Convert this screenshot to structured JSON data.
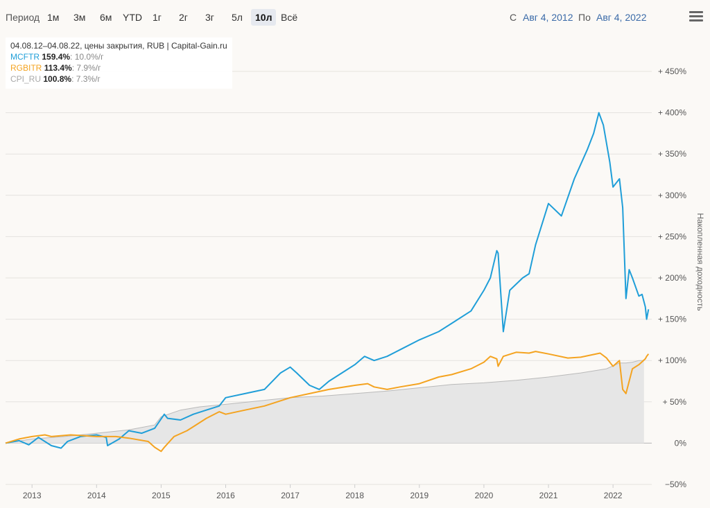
{
  "toolbar": {
    "period_label": "Период",
    "ranges": [
      "1м",
      "3м",
      "6м",
      "YTD",
      "1г",
      "2г",
      "3г",
      "5л",
      "10л",
      "Всё"
    ],
    "active_range": "10л",
    "from_label": "С",
    "from_date": "Авг 4, 2012",
    "to_label": "По",
    "to_date": "Авг 4, 2022"
  },
  "legend": {
    "caption": "04.08.12–04.08.22, цены закрытия, RUB | Capital-Gain.ru",
    "items": [
      {
        "name": "MCFTR",
        "total": "159.4%",
        "annual": ": 10.0%/г",
        "color": "#1f9ed8"
      },
      {
        "name": "RGBITR",
        "total": "113.4%",
        "annual": ": 7.9%/г",
        "color": "#f4a320"
      },
      {
        "name": "CPI_RU",
        "total": "100.8%",
        "annual": ": 7.3%/г",
        "color": "#b9b9b9"
      }
    ]
  },
  "chart_data": {
    "type": "line",
    "ylabel": "Накопленная доходность",
    "xlabel": "",
    "ylim": [
      -50,
      450
    ],
    "xlim": [
      2012.59,
      2022.6
    ],
    "y_ticks": [
      -50,
      0,
      50,
      100,
      150,
      200,
      250,
      300,
      350,
      400,
      450
    ],
    "y_tick_labels": [
      "−50%",
      "0%",
      "+ 50%",
      "+ 100%",
      "+ 150%",
      "+ 200%",
      "+ 250%",
      "+ 300%",
      "+ 350%",
      "+ 400%",
      "+ 450%"
    ],
    "x_ticks": [
      2013,
      2014,
      2015,
      2016,
      2017,
      2018,
      2019,
      2020,
      2021,
      2022
    ],
    "grid": true,
    "legend_position": "top-left",
    "series": [
      {
        "name": "MCFTR",
        "color": "#1f9ed8",
        "style": "line",
        "x": [
          2012.59,
          2012.8,
          2012.95,
          2013.1,
          2013.3,
          2013.45,
          2013.55,
          2013.75,
          2014.0,
          2014.15,
          2014.17,
          2014.35,
          2014.5,
          2014.7,
          2014.9,
          2015.05,
          2015.1,
          2015.3,
          2015.5,
          2015.7,
          2015.9,
          2016.0,
          2016.3,
          2016.6,
          2016.85,
          2017.0,
          2017.1,
          2017.3,
          2017.45,
          2017.6,
          2017.8,
          2018.0,
          2018.15,
          2018.3,
          2018.5,
          2018.75,
          2019.0,
          2019.3,
          2019.5,
          2019.8,
          2020.0,
          2020.1,
          2020.2,
          2020.22,
          2020.3,
          2020.4,
          2020.6,
          2020.7,
          2020.8,
          2021.0,
          2021.2,
          2021.4,
          2021.6,
          2021.7,
          2021.78,
          2021.85,
          2021.95,
          2022.0,
          2022.1,
          2022.15,
          2022.2,
          2022.25,
          2022.3,
          2022.4,
          2022.45,
          2022.5,
          2022.52,
          2022.55
        ],
        "y": [
          0,
          3,
          -2,
          7,
          -3,
          -6,
          2,
          8,
          10,
          7,
          -3,
          5,
          15,
          12,
          18,
          35,
          30,
          28,
          35,
          40,
          45,
          55,
          60,
          65,
          85,
          92,
          85,
          70,
          65,
          75,
          85,
          95,
          105,
          100,
          105,
          115,
          125,
          135,
          145,
          160,
          185,
          200,
          233,
          230,
          135,
          185,
          200,
          205,
          240,
          290,
          275,
          320,
          355,
          375,
          400,
          385,
          340,
          310,
          320,
          285,
          175,
          210,
          200,
          178,
          180,
          165,
          150,
          162
        ]
      },
      {
        "name": "RGBITR",
        "color": "#f4a320",
        "style": "line",
        "x": [
          2012.59,
          2012.8,
          2013.0,
          2013.2,
          2013.3,
          2013.6,
          2014.0,
          2014.3,
          2014.5,
          2014.8,
          2014.9,
          2015.0,
          2015.05,
          2015.2,
          2015.4,
          2015.5,
          2015.7,
          2015.9,
          2016.0,
          2016.3,
          2016.6,
          2017.0,
          2017.3,
          2017.6,
          2018.0,
          2018.2,
          2018.3,
          2018.5,
          2018.7,
          2019.0,
          2019.3,
          2019.5,
          2019.8,
          2020.0,
          2020.1,
          2020.2,
          2020.22,
          2020.3,
          2020.5,
          2020.7,
          2020.8,
          2021.0,
          2021.3,
          2021.5,
          2021.8,
          2021.9,
          2022.0,
          2022.1,
          2022.15,
          2022.2,
          2022.3,
          2022.4,
          2022.5,
          2022.52,
          2022.55
        ],
        "y": [
          0,
          5,
          8,
          10,
          8,
          10,
          8,
          8,
          6,
          2,
          -5,
          -10,
          -5,
          8,
          15,
          20,
          30,
          38,
          35,
          40,
          45,
          55,
          60,
          65,
          70,
          72,
          68,
          65,
          68,
          72,
          80,
          83,
          90,
          98,
          105,
          102,
          93,
          105,
          110,
          109,
          111,
          108,
          103,
          104,
          109,
          103,
          93,
          100,
          65,
          60,
          90,
          95,
          102,
          105,
          108
        ]
      },
      {
        "name": "CPI_RU",
        "color": "#b9b9b9",
        "style": "area",
        "x": [
          2012.59,
          2013.0,
          2013.5,
          2014.0,
          2014.5,
          2014.9,
          2015.0,
          2015.3,
          2015.6,
          2016.0,
          2016.5,
          2017.0,
          2017.5,
          2018.0,
          2018.5,
          2019.0,
          2019.5,
          2020.0,
          2020.5,
          2021.0,
          2021.5,
          2021.9,
          2022.1,
          2022.2,
          2022.3,
          2022.4,
          2022.48
        ],
        "y": [
          0,
          5,
          8,
          12,
          16,
          22,
          32,
          40,
          44,
          47,
          51,
          55,
          57,
          60,
          63,
          67,
          71,
          73,
          76,
          80,
          85,
          90,
          97,
          97,
          98,
          100,
          100
        ]
      }
    ]
  }
}
